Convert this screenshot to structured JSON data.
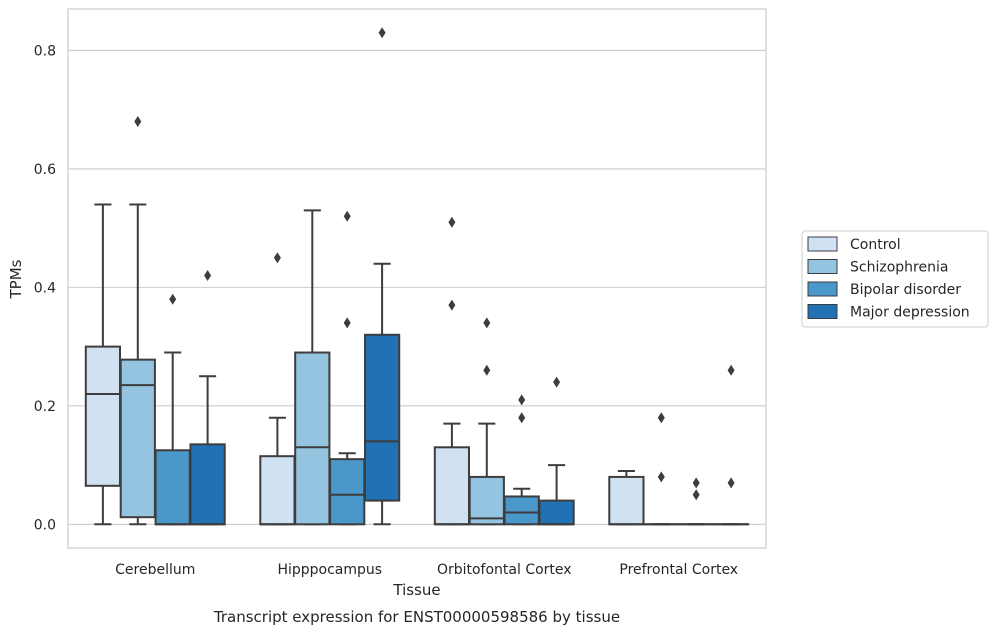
{
  "chart_data": {
    "type": "box",
    "caption": "Transcript expression for ENST00000598586 by tissue",
    "xlabel": "Tissue",
    "ylabel": "TPMs",
    "ylim": [
      -0.04,
      0.87
    ],
    "yticks": [
      "0.0",
      "0.2",
      "0.4",
      "0.6",
      "0.8"
    ],
    "ytick_values": [
      0.0,
      0.2,
      0.4,
      0.6,
      0.8
    ],
    "grid": "horizontal",
    "legend_position": "right",
    "categories": [
      "Cerebellum",
      "Hipppocampus",
      "Orbitofontal Cortex",
      "Prefrontal Cortex"
    ],
    "series": [
      {
        "name": "Control",
        "color": "#d0e1f2",
        "boxes": [
          {
            "min": 0.0,
            "q1": 0.065,
            "median": 0.22,
            "q3": 0.3,
            "max": 0.54,
            "outliers": []
          },
          {
            "min": 0.0,
            "q1": 0.0,
            "median": 0.0,
            "q3": 0.115,
            "max": 0.18,
            "outliers": [
              0.45
            ]
          },
          {
            "min": 0.0,
            "q1": 0.0,
            "median": 0.0,
            "q3": 0.13,
            "max": 0.17,
            "outliers": [
              0.37,
              0.51
            ]
          },
          {
            "min": 0.0,
            "q1": 0.0,
            "median": 0.0,
            "q3": 0.08,
            "max": 0.09,
            "outliers": []
          }
        ]
      },
      {
        "name": "Schizophrenia",
        "color": "#94c4df",
        "boxes": [
          {
            "min": 0.0,
            "q1": 0.012,
            "median": 0.235,
            "q3": 0.278,
            "max": 0.54,
            "outliers": [
              0.68
            ]
          },
          {
            "min": 0.0,
            "q1": 0.0,
            "median": 0.13,
            "q3": 0.29,
            "max": 0.53,
            "outliers": []
          },
          {
            "min": 0.0,
            "q1": 0.0,
            "median": 0.01,
            "q3": 0.08,
            "max": 0.17,
            "outliers": [
              0.26,
              0.34
            ]
          },
          {
            "min": 0.0,
            "q1": 0.0,
            "median": 0.0,
            "q3": 0.0,
            "max": 0.0,
            "outliers": [
              0.08,
              0.18
            ]
          }
        ]
      },
      {
        "name": "Bipolar disorder",
        "color": "#4a98c9",
        "boxes": [
          {
            "min": 0.0,
            "q1": 0.0,
            "median": 0.0,
            "q3": 0.125,
            "max": 0.29,
            "outliers": [
              0.38
            ]
          },
          {
            "min": 0.0,
            "q1": 0.0,
            "median": 0.05,
            "q3": 0.11,
            "max": 0.12,
            "outliers": [
              0.34,
              0.52
            ]
          },
          {
            "min": 0.0,
            "q1": 0.0,
            "median": 0.02,
            "q3": 0.047,
            "max": 0.06,
            "outliers": [
              0.18,
              0.21
            ]
          },
          {
            "min": 0.0,
            "q1": 0.0,
            "median": 0.0,
            "q3": 0.0,
            "max": 0.0,
            "outliers": [
              0.05,
              0.07
            ]
          }
        ]
      },
      {
        "name": "Major depression",
        "color": "#2171b5",
        "boxes": [
          {
            "min": 0.0,
            "q1": 0.0,
            "median": 0.0,
            "q3": 0.135,
            "max": 0.25,
            "outliers": [
              0.42
            ]
          },
          {
            "min": 0.0,
            "q1": 0.04,
            "median": 0.14,
            "q3": 0.32,
            "max": 0.44,
            "outliers": [
              0.83
            ]
          },
          {
            "min": 0.0,
            "q1": 0.0,
            "median": 0.0,
            "q3": 0.04,
            "max": 0.1,
            "outliers": [
              0.24
            ]
          },
          {
            "min": 0.0,
            "q1": 0.0,
            "median": 0.0,
            "q3": 0.0,
            "max": 0.0,
            "outliers": [
              0.07,
              0.26
            ]
          }
        ]
      }
    ]
  }
}
